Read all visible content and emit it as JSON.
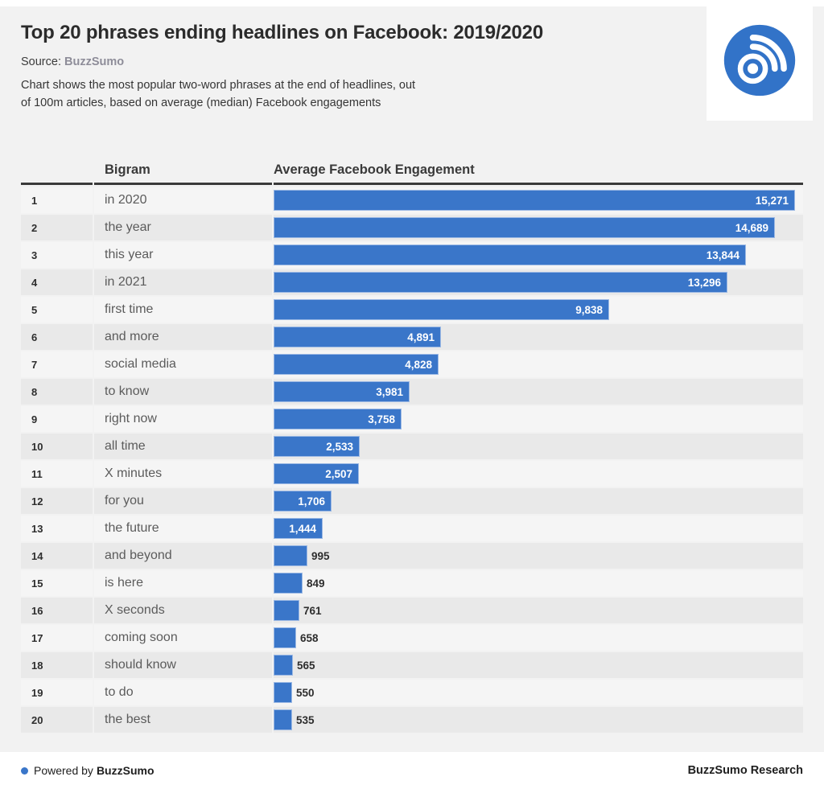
{
  "header": {
    "title": "Top 20 phrases ending headlines on Facebook: 2019/2020",
    "source_label": "Source:",
    "source_name": "BuzzSumo",
    "description_line1": "Chart shows the most popular two-word phrases at the end of headlines, out",
    "description_line2": "of 100m articles, based on average (median) Facebook engagements"
  },
  "table": {
    "columns": {
      "bigram": "Bigram",
      "engagement": "Average Facebook Engagement"
    }
  },
  "chart_data": {
    "type": "bar",
    "orientation": "horizontal",
    "title": "Top 20 phrases ending headlines on Facebook: 2019/2020",
    "xlabel": "Average Facebook Engagement",
    "ylabel": "Bigram",
    "xlim": [
      0,
      15271
    ],
    "bar_color": "#3a76c9",
    "rows": [
      {
        "rank": "1",
        "bigram": "in 2020",
        "value": 15271,
        "label": "15,271"
      },
      {
        "rank": "2",
        "bigram": "the year",
        "value": 14689,
        "label": "14,689"
      },
      {
        "rank": "3",
        "bigram": "this year",
        "value": 13844,
        "label": "13,844"
      },
      {
        "rank": "4",
        "bigram": "in 2021",
        "value": 13296,
        "label": "13,296"
      },
      {
        "rank": "5",
        "bigram": "first time",
        "value": 9838,
        "label": "9,838"
      },
      {
        "rank": "6",
        "bigram": "and more",
        "value": 4891,
        "label": "4,891"
      },
      {
        "rank": "7",
        "bigram": "social media",
        "value": 4828,
        "label": "4,828"
      },
      {
        "rank": "8",
        "bigram": "to know",
        "value": 3981,
        "label": "3,981"
      },
      {
        "rank": "9",
        "bigram": "right now",
        "value": 3758,
        "label": "3,758"
      },
      {
        "rank": "10",
        "bigram": "all time",
        "value": 2533,
        "label": "2,533"
      },
      {
        "rank": "11",
        "bigram": "X minutes",
        "value": 2507,
        "label": "2,507"
      },
      {
        "rank": "12",
        "bigram": "for you",
        "value": 1706,
        "label": "1,706"
      },
      {
        "rank": "13",
        "bigram": "the future",
        "value": 1444,
        "label": "1,444"
      },
      {
        "rank": "14",
        "bigram": "and beyond",
        "value": 995,
        "label": "995"
      },
      {
        "rank": "15",
        "bigram": "is here",
        "value": 849,
        "label": "849"
      },
      {
        "rank": "16",
        "bigram": "X seconds",
        "value": 761,
        "label": "761"
      },
      {
        "rank": "17",
        "bigram": "coming soon",
        "value": 658,
        "label": "658"
      },
      {
        "rank": "18",
        "bigram": "should know",
        "value": 565,
        "label": "565"
      },
      {
        "rank": "19",
        "bigram": "to do",
        "value": 550,
        "label": "550"
      },
      {
        "rank": "20",
        "bigram": "the best",
        "value": 535,
        "label": "535"
      }
    ]
  },
  "footer": {
    "powered_by": "Powered by",
    "brand": "BuzzSumo",
    "research": "BuzzSumo Research"
  },
  "colors": {
    "bar": "#3a76c9",
    "logo": "#3273c8",
    "background": "#f2f2f2",
    "row_odd": "#f5f5f5",
    "row_even": "#e9e9e9",
    "header_rule": "#3a3a3a"
  }
}
